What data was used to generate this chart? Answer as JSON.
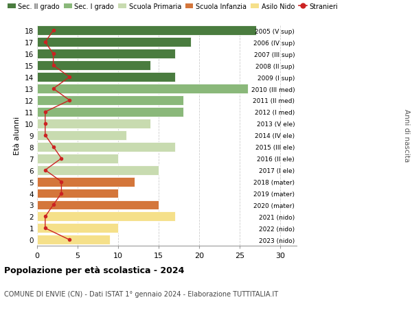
{
  "ages": [
    18,
    17,
    16,
    15,
    14,
    13,
    12,
    11,
    10,
    9,
    8,
    7,
    6,
    5,
    4,
    3,
    2,
    1,
    0
  ],
  "bar_values": [
    27,
    19,
    17,
    14,
    17,
    26,
    18,
    18,
    14,
    11,
    17,
    10,
    15,
    12,
    10,
    15,
    17,
    10,
    9
  ],
  "stranieri": [
    2,
    1,
    2,
    2,
    4,
    2,
    4,
    1,
    1,
    1,
    2,
    3,
    1,
    3,
    3,
    2,
    1,
    1,
    4
  ],
  "right_labels": [
    "2005 (V sup)",
    "2006 (IV sup)",
    "2007 (III sup)",
    "2008 (II sup)",
    "2009 (I sup)",
    "2010 (III med)",
    "2011 (II med)",
    "2012 (I med)",
    "2013 (V ele)",
    "2014 (IV ele)",
    "2015 (III ele)",
    "2016 (II ele)",
    "2017 (I ele)",
    "2018 (mater)",
    "2019 (mater)",
    "2020 (mater)",
    "2021 (nido)",
    "2022 (nido)",
    "2023 (nido)"
  ],
  "color_per_age": [
    "#4a7c3f",
    "#4a7c3f",
    "#4a7c3f",
    "#4a7c3f",
    "#4a7c3f",
    "#8ab87a",
    "#8ab87a",
    "#8ab87a",
    "#c8dbb0",
    "#c8dbb0",
    "#c8dbb0",
    "#c8dbb0",
    "#c8dbb0",
    "#d4763b",
    "#d4763b",
    "#d4763b",
    "#f5e08a",
    "#f5e08a",
    "#f5e08a"
  ],
  "stranieri_color": "#cc2222",
  "legend_labels": [
    "Sec. II grado",
    "Sec. I grado",
    "Scuola Primaria",
    "Scuola Infanzia",
    "Asilo Nido",
    "Stranieri"
  ],
  "legend_colors": [
    "#4a7c3f",
    "#8ab87a",
    "#c8dbb0",
    "#d4763b",
    "#f5e08a",
    "#cc2222"
  ],
  "ylabel": "Età alunni",
  "right_ylabel": "Anni di nascita",
  "title": "Popolazione per età scolastica - 2024",
  "subtitle": "COMUNE DI ENVIE (CN) - Dati ISTAT 1° gennaio 2024 - Elaborazione TUTTITALIA.IT",
  "xlim": [
    0,
    32
  ],
  "xticks": [
    0,
    5,
    10,
    15,
    20,
    25,
    30
  ],
  "background_color": "#ffffff",
  "grid_color": "#cccccc"
}
